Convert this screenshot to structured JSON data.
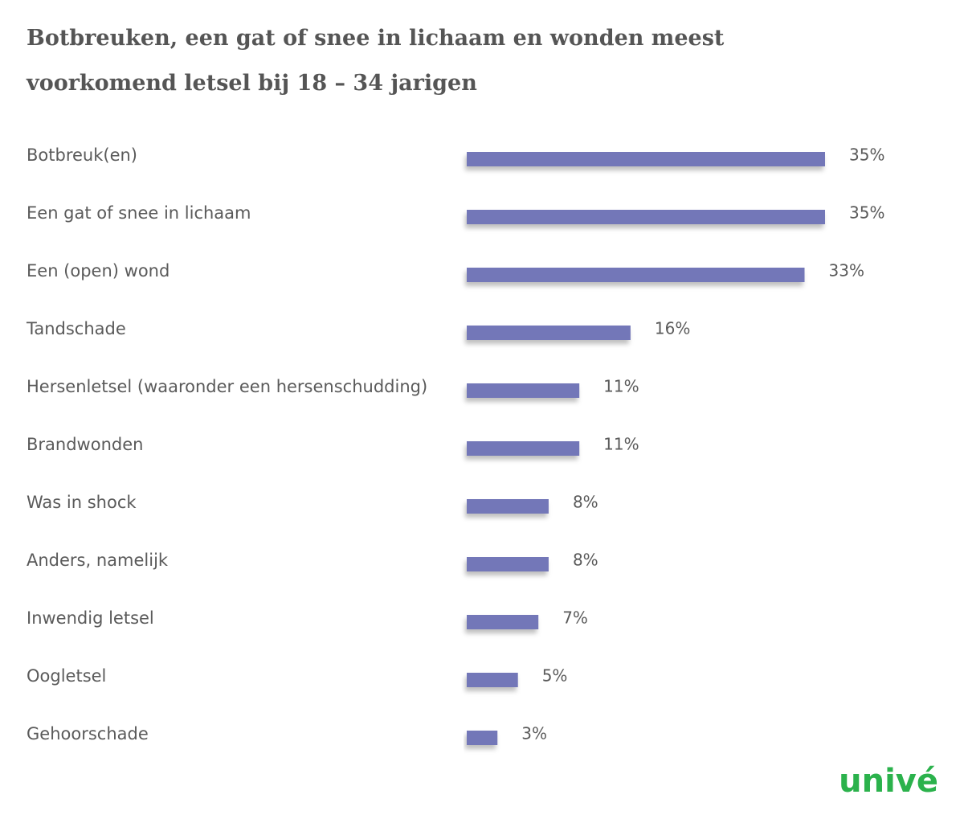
{
  "chart_data": {
    "type": "bar",
    "orientation": "horizontal",
    "title": [
      "Botbreuken, een gat of snee in lichaam en wonden meest",
      "voorkomend letsel bij 18 – 34 jarigen"
    ],
    "categories": [
      "Botbreuk(en)",
      "Een gat of snee in lichaam",
      "Een (open) wond",
      "Tandschade",
      "Hersenletsel (waaronder een hersenschudding)",
      "Brandwonden",
      "Was in shock",
      "Anders, namelijk",
      "Inwendig letsel",
      "Oogletsel",
      "Gehoorschade"
    ],
    "values": [
      35,
      35,
      33,
      16,
      11,
      11,
      8,
      8,
      7,
      5,
      3
    ],
    "value_labels": [
      "35%",
      "35%",
      "33%",
      "16%",
      "11%",
      "11%",
      "8%",
      "8%",
      "7%",
      "5%",
      "3%"
    ],
    "color": "#7377b8"
  },
  "logo": "univé"
}
